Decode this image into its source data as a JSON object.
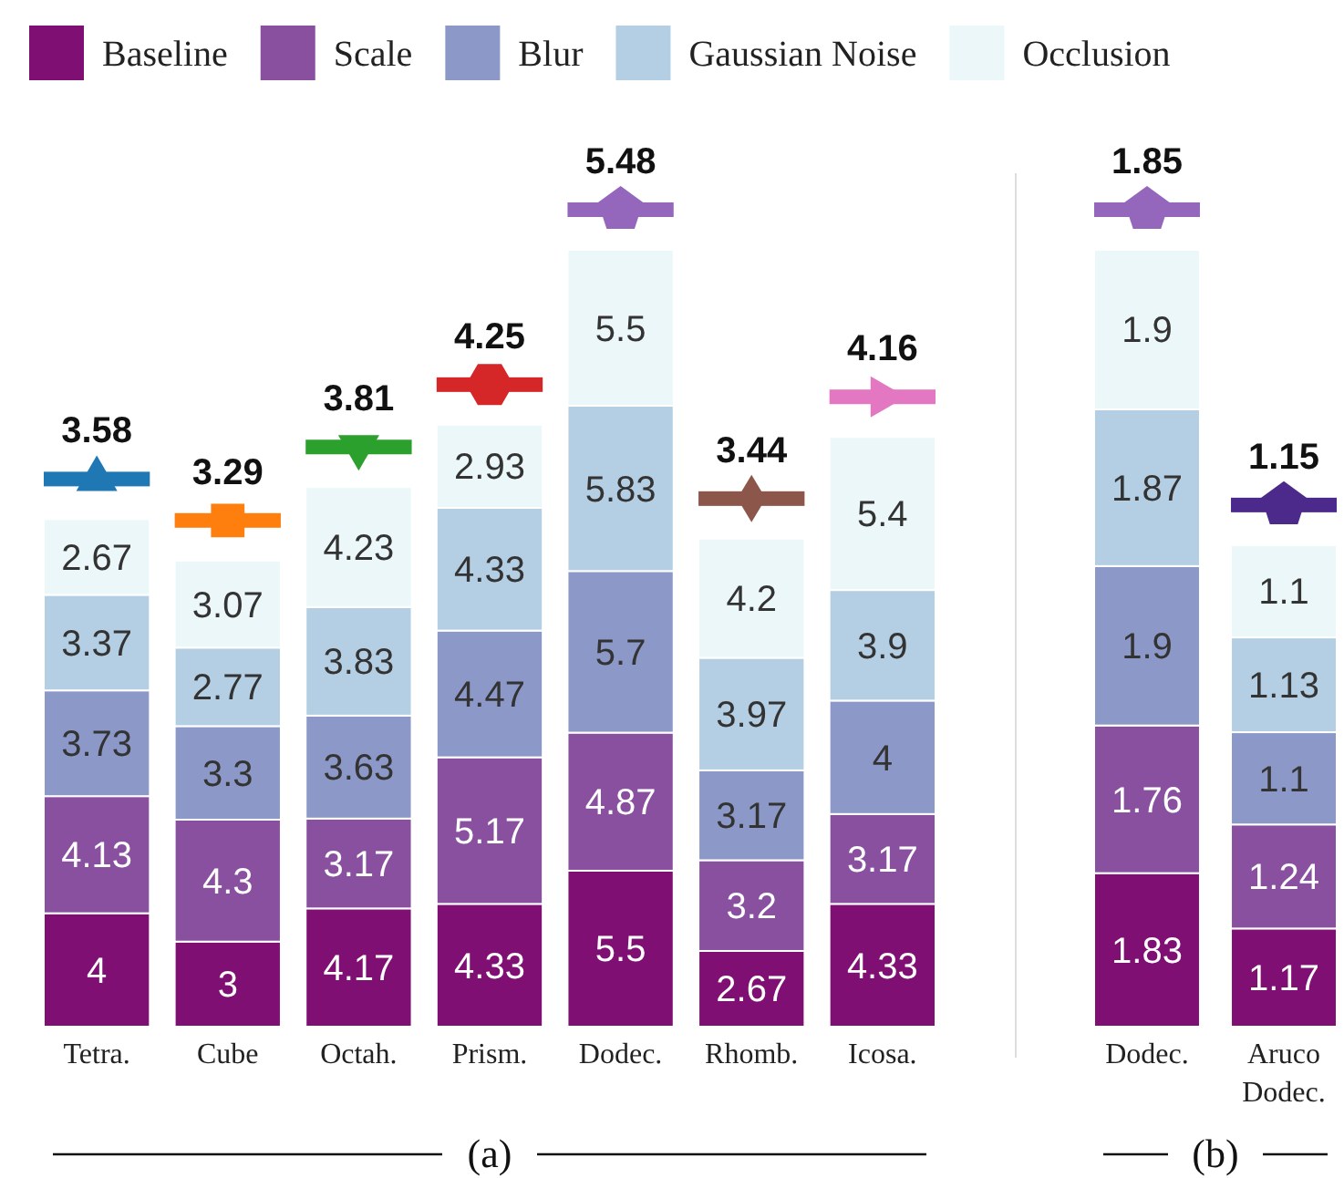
{
  "chart_data": [
    {
      "type": "bar",
      "stacked": true,
      "xlabel": "(a)",
      "legend": "top",
      "data_labels": true,
      "categories": [
        "Tetra.",
        "Cube",
        "Octah.",
        "Prism.",
        "Dodec.",
        "Rhomb.",
        "Icosa."
      ],
      "series": [
        {
          "name": "Baseline",
          "color": "#7f0f72",
          "values": [
            4,
            3,
            4.17,
            4.33,
            5.5,
            2.67,
            4.33
          ]
        },
        {
          "name": "Scale",
          "color": "#8a50a0",
          "values": [
            4.13,
            4.3,
            3.17,
            5.17,
            4.87,
            3.2,
            3.17
          ]
        },
        {
          "name": "Blur",
          "color": "#8b98c8",
          "values": [
            3.73,
            3.3,
            3.63,
            4.47,
            5.7,
            3.17,
            4
          ]
        },
        {
          "name": "Gaussian Noise",
          "color": "#b4cfe4",
          "values": [
            3.37,
            2.77,
            3.83,
            4.33,
            5.83,
            3.97,
            3.9
          ]
        },
        {
          "name": "Occlusion",
          "color": "#ebf7f8",
          "values": [
            2.67,
            3.07,
            4.23,
            2.93,
            5.5,
            4.2,
            5.4
          ]
        }
      ],
      "annotations": [
        "3.58",
        "3.29",
        "3.81",
        "4.25",
        "5.48",
        "3.44",
        "4.16"
      ]
    },
    {
      "type": "bar",
      "stacked": true,
      "xlabel": "(b)",
      "data_labels": true,
      "categories": [
        "Dodec.",
        "Aruco Dodec."
      ],
      "series": [
        {
          "color": "#7f0f72",
          "values": [
            1.83,
            1.17
          ]
        },
        {
          "color": "#8a50a0",
          "values": [
            1.76,
            1.24
          ]
        },
        {
          "color": "#8b98c8",
          "values": [
            1.9,
            1.1
          ]
        },
        {
          "color": "#b4cfe4",
          "values": [
            1.87,
            1.13
          ]
        },
        {
          "color": "#ebf7f8",
          "values": [
            1.9,
            1.1
          ]
        }
      ],
      "annotations": [
        "1.85",
        "1.15"
      ]
    }
  ]
}
